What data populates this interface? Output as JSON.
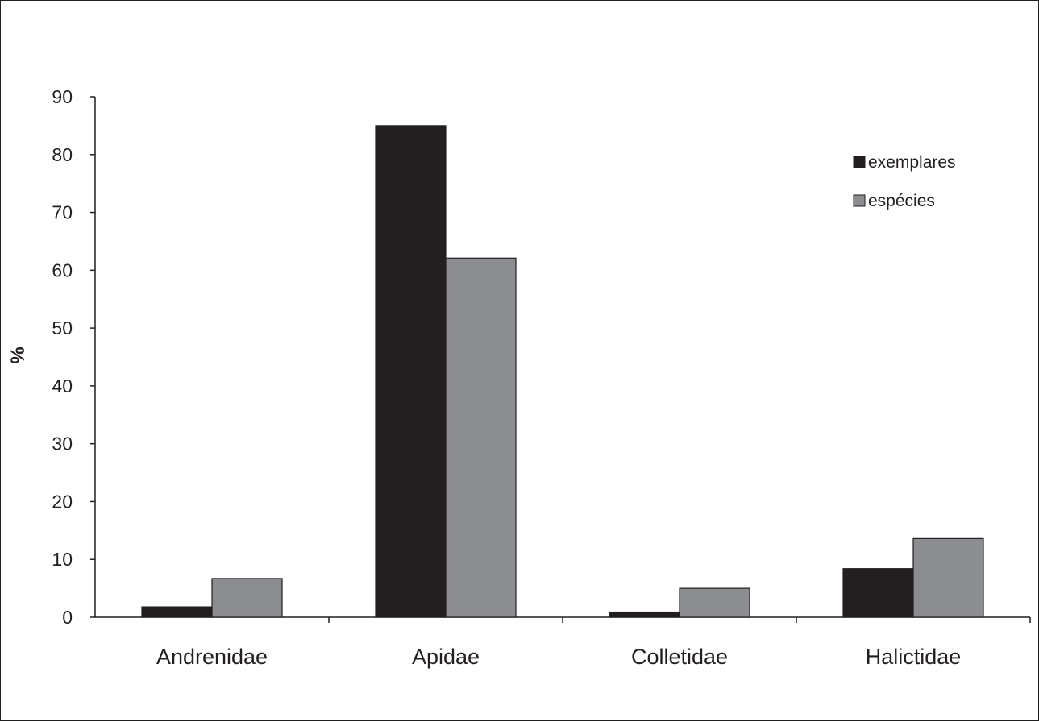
{
  "chart_data": {
    "type": "bar",
    "title": "",
    "xlabel": "",
    "ylabel": "%",
    "ylim": [
      0,
      90
    ],
    "yticks": [
      0,
      10,
      20,
      30,
      40,
      50,
      60,
      70,
      80,
      90
    ],
    "categories": [
      "Andrenidae",
      "Apidae",
      "Colletidae",
      "Halictidae"
    ],
    "series": [
      {
        "name": "exemplares",
        "color": "#231f20",
        "values": [
          1.8,
          85.0,
          0.9,
          8.4
        ]
      },
      {
        "name": "espécies",
        "color": "#8c8d90",
        "values": [
          6.7,
          62.1,
          5.0,
          13.6
        ]
      }
    ],
    "grid": false,
    "legend": "top-right"
  }
}
